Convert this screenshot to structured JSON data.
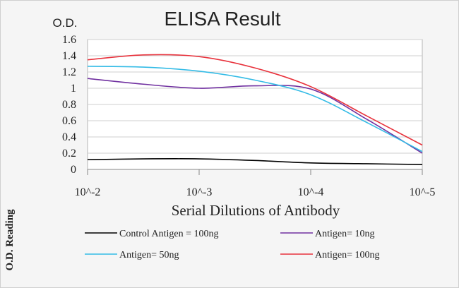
{
  "chart_data": {
    "type": "line",
    "title": "ELISA Result",
    "ylabel_top": "O.D.",
    "ylabel_side": "O.D. Reading",
    "xlabel": "Serial Dilutions of Antibody",
    "x_tick_labels": [
      "10^-2",
      "10^-3",
      "10^-4",
      "10^-5"
    ],
    "x": [
      0,
      1,
      2,
      3
    ],
    "y_ticks": [
      "0",
      "0.2",
      "0.4",
      "0.6",
      "0.8",
      "1",
      "1.2",
      "1.4",
      "1.6"
    ],
    "ylim": [
      0,
      1.6
    ],
    "grid": "horizontal",
    "legend_position": "bottom",
    "series": [
      {
        "name": "Control Antigen = 100ng",
        "color": "#000000",
        "x": [
          0,
          0.5,
          1,
          1.5,
          2,
          2.5,
          3
        ],
        "values": [
          0.12,
          0.13,
          0.13,
          0.11,
          0.08,
          0.07,
          0.06
        ]
      },
      {
        "name": "Antigen= 10ng",
        "color": "#7030a0",
        "x": [
          0,
          0.5,
          1,
          1.5,
          2,
          2.5,
          3
        ],
        "values": [
          1.12,
          1.05,
          1.0,
          1.03,
          0.99,
          0.62,
          0.2
        ]
      },
      {
        "name": "Antigen= 50ng",
        "color": "#33bbe6",
        "x": [
          0,
          0.5,
          1,
          1.5,
          2,
          2.5,
          3
        ],
        "values": [
          1.27,
          1.26,
          1.21,
          1.1,
          0.92,
          0.58,
          0.22
        ]
      },
      {
        "name": "Antigen= 100ng",
        "color": "#e8323c",
        "x": [
          0,
          0.5,
          1,
          1.5,
          2,
          2.5,
          3
        ],
        "values": [
          1.35,
          1.41,
          1.39,
          1.25,
          1.02,
          0.66,
          0.3
        ]
      }
    ]
  }
}
